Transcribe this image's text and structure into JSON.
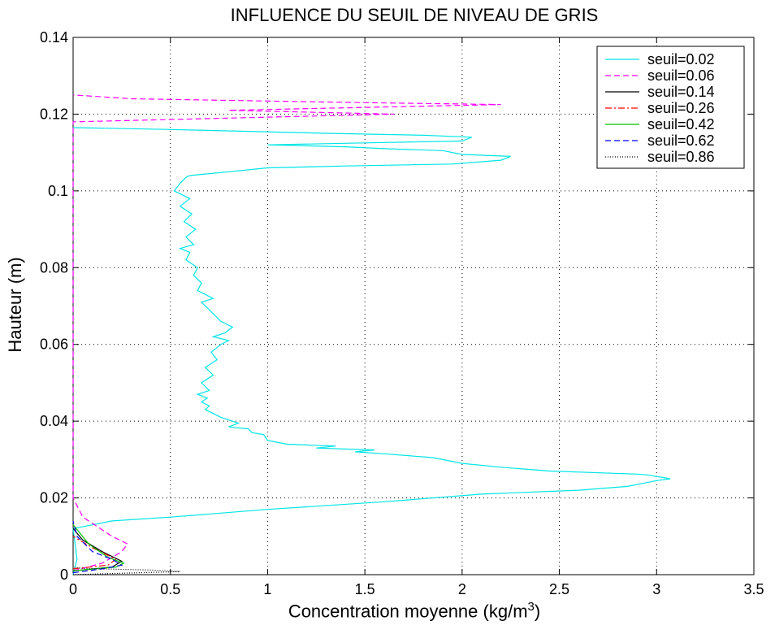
{
  "chart_data": {
    "type": "line",
    "title": "INFLUENCE DU SEUIL DE NIVEAU DE GRIS",
    "xlabel_main": "Concentration moyenne (kg/m",
    "xlabel_sup": "3",
    "xlabel_close": ")",
    "ylabel": "Hauteur (m)",
    "xlim": [
      0,
      3.5
    ],
    "ylim": [
      0,
      0.14
    ],
    "xticks": [
      "0",
      "0.5",
      "1",
      "1.5",
      "2",
      "2.5",
      "3",
      "3.5"
    ],
    "yticks": [
      "0",
      "0.02",
      "0.04",
      "0.06",
      "0.08",
      "0.1",
      "0.12",
      "0.14"
    ],
    "grid": true,
    "legend_position": "top-right",
    "series": [
      {
        "name": "seuil=0.02",
        "color": "#00e5e5",
        "dash": "solid",
        "points": [
          [
            0.0,
            0.0
          ],
          [
            0.02,
            0.004
          ],
          [
            0.01,
            0.008
          ],
          [
            0.0,
            0.012
          ],
          [
            0.2,
            0.014
          ],
          [
            0.5,
            0.015
          ],
          [
            1.0,
            0.017
          ],
          [
            1.6,
            0.019
          ],
          [
            2.1,
            0.021
          ],
          [
            2.6,
            0.022
          ],
          [
            2.85,
            0.023
          ],
          [
            2.95,
            0.024
          ],
          [
            3.0,
            0.0245
          ],
          [
            3.07,
            0.025
          ],
          [
            2.95,
            0.026
          ],
          [
            2.9,
            0.0262
          ],
          [
            2.45,
            0.027
          ],
          [
            2.2,
            0.028
          ],
          [
            2.0,
            0.029
          ],
          [
            1.85,
            0.0305
          ],
          [
            1.6,
            0.0315
          ],
          [
            1.45,
            0.032
          ],
          [
            1.55,
            0.0325
          ],
          [
            1.25,
            0.033
          ],
          [
            1.35,
            0.0335
          ],
          [
            1.1,
            0.034
          ],
          [
            1.0,
            0.035
          ],
          [
            0.98,
            0.0365
          ],
          [
            0.92,
            0.037
          ],
          [
            0.9,
            0.038
          ],
          [
            0.8,
            0.0385
          ],
          [
            0.85,
            0.0395
          ],
          [
            0.76,
            0.041
          ],
          [
            0.72,
            0.042
          ],
          [
            0.68,
            0.043
          ],
          [
            0.7,
            0.044
          ],
          [
            0.66,
            0.045
          ],
          [
            0.69,
            0.046
          ],
          [
            0.64,
            0.047
          ],
          [
            0.7,
            0.048
          ],
          [
            0.66,
            0.05
          ],
          [
            0.72,
            0.052
          ],
          [
            0.68,
            0.054
          ],
          [
            0.74,
            0.056
          ],
          [
            0.71,
            0.058
          ],
          [
            0.76,
            0.06
          ],
          [
            0.8,
            0.061
          ],
          [
            0.72,
            0.062
          ],
          [
            0.78,
            0.063
          ],
          [
            0.82,
            0.0645
          ],
          [
            0.76,
            0.066
          ],
          [
            0.74,
            0.067
          ],
          [
            0.7,
            0.069
          ],
          [
            0.66,
            0.071
          ],
          [
            0.72,
            0.072
          ],
          [
            0.64,
            0.074
          ],
          [
            0.66,
            0.076
          ],
          [
            0.62,
            0.078
          ],
          [
            0.64,
            0.08
          ],
          [
            0.58,
            0.082
          ],
          [
            0.6,
            0.084
          ],
          [
            0.55,
            0.085
          ],
          [
            0.62,
            0.086
          ],
          [
            0.58,
            0.088
          ],
          [
            0.63,
            0.09
          ],
          [
            0.57,
            0.092
          ],
          [
            0.61,
            0.094
          ],
          [
            0.55,
            0.096
          ],
          [
            0.6,
            0.098
          ],
          [
            0.52,
            0.1
          ],
          [
            0.55,
            0.102
          ],
          [
            0.58,
            0.1035
          ],
          [
            0.6,
            0.104
          ],
          [
            0.8,
            0.105
          ],
          [
            1.0,
            0.106
          ],
          [
            1.4,
            0.1065
          ],
          [
            1.95,
            0.107
          ],
          [
            2.2,
            0.108
          ],
          [
            2.25,
            0.109
          ],
          [
            2.0,
            0.1095
          ],
          [
            1.9,
            0.1105
          ],
          [
            1.6,
            0.111
          ],
          [
            1.4,
            0.1115
          ],
          [
            1.0,
            0.112
          ],
          [
            1.5,
            0.1125
          ],
          [
            2.0,
            0.113
          ],
          [
            2.05,
            0.114
          ],
          [
            1.8,
            0.1145
          ],
          [
            1.3,
            0.115
          ],
          [
            0.5,
            0.116
          ],
          [
            0.0,
            0.1165
          ]
        ]
      },
      {
        "name": "seuil=0.06",
        "color": "#ff00ff",
        "dash": "dashed",
        "points": [
          [
            0.0,
            0.001
          ],
          [
            0.15,
            0.003
          ],
          [
            0.25,
            0.006
          ],
          [
            0.28,
            0.008
          ],
          [
            0.2,
            0.01
          ],
          [
            0.05,
            0.015
          ],
          [
            0.0,
            0.02
          ],
          [
            0.0,
            0.118
          ],
          [
            1.65,
            0.12
          ],
          [
            0.8,
            0.121
          ],
          [
            2.2,
            0.1225
          ],
          [
            1.5,
            0.123
          ],
          [
            0.3,
            0.124
          ],
          [
            0.0,
            0.125
          ]
        ]
      },
      {
        "name": "seuil=0.14",
        "color": "#000000",
        "dash": "solid",
        "points": [
          [
            0.0,
            0.001
          ],
          [
            0.2,
            0.002
          ],
          [
            0.25,
            0.0035
          ],
          [
            0.15,
            0.006
          ],
          [
            0.05,
            0.009
          ],
          [
            0.0,
            0.012
          ]
        ]
      },
      {
        "name": "seuil=0.26",
        "color": "#ff0000",
        "dash": "dashdot",
        "points": [
          [
            0.0,
            0.0015
          ],
          [
            0.18,
            0.0025
          ],
          [
            0.22,
            0.004
          ],
          [
            0.1,
            0.007
          ],
          [
            0.0,
            0.01
          ]
        ]
      },
      {
        "name": "seuil=0.42",
        "color": "#00c000",
        "dash": "solid",
        "points": [
          [
            0.0,
            0.001
          ],
          [
            0.22,
            0.002
          ],
          [
            0.26,
            0.003
          ],
          [
            0.18,
            0.0045
          ],
          [
            0.08,
            0.008
          ],
          [
            0.0,
            0.013
          ]
        ]
      },
      {
        "name": "seuil=0.62",
        "color": "#0000ff",
        "dash": "dashed",
        "points": [
          [
            0.0,
            0.0005
          ],
          [
            0.15,
            0.0015
          ],
          [
            0.25,
            0.0025
          ],
          [
            0.2,
            0.004
          ],
          [
            0.1,
            0.006
          ],
          [
            0.02,
            0.01
          ],
          [
            0.0,
            0.014
          ]
        ]
      },
      {
        "name": "seuil=0.86",
        "color": "#000000",
        "dash": "dotted",
        "points": [
          [
            0.0,
            0.0
          ],
          [
            0.55,
            0.0008
          ],
          [
            0.4,
            0.0012
          ],
          [
            0.05,
            0.0016
          ],
          [
            0.0,
            0.002
          ]
        ]
      }
    ]
  }
}
